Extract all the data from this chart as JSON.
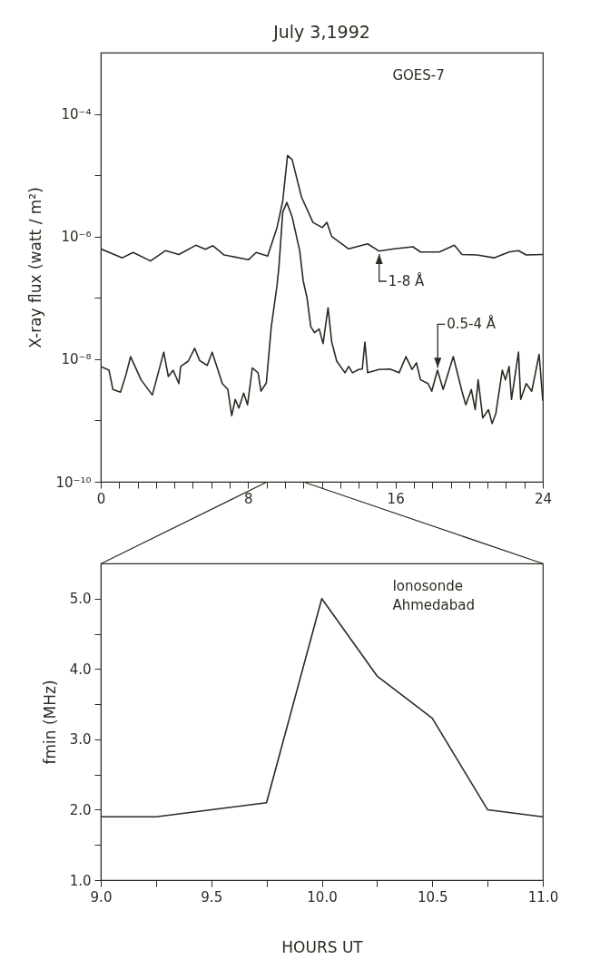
{
  "chart_data": [
    {
      "type": "line",
      "title": "July 3,1992",
      "ylabel": "X-ray flux (watt / m²)",
      "log": true,
      "grid": false,
      "marker": "none",
      "line_style": "solid",
      "annotations": [
        "GOES-7"
      ],
      "xlim": [
        0,
        24
      ],
      "xticks": [
        0,
        {
          "value": 1,
          "label": null
        },
        {
          "value": 2,
          "label": null
        },
        {
          "value": 3,
          "label": null
        },
        {
          "value": 4,
          "label": null
        },
        {
          "value": 5,
          "label": null
        },
        {
          "value": 6,
          "label": null
        },
        {
          "value": 7,
          "label": null
        },
        8,
        {
          "value": 9,
          "label": null
        },
        {
          "value": 10,
          "label": null
        },
        {
          "value": 11,
          "label": null
        },
        {
          "value": 12,
          "label": null
        },
        {
          "value": 13,
          "label": null
        },
        {
          "value": 14,
          "label": null
        },
        {
          "value": 15,
          "label": null
        },
        16,
        {
          "value": 17,
          "label": null
        },
        {
          "value": 18,
          "label": null
        },
        {
          "value": 19,
          "label": null
        },
        {
          "value": 20,
          "label": null
        },
        {
          "value": 21,
          "label": null
        },
        {
          "value": 22,
          "label": null
        },
        {
          "value": 23,
          "label": null
        },
        24
      ],
      "ylim": [
        1e-10,
        0.001
      ],
      "yticks": [
        {
          "value": 1e-10,
          "label": "10⁻¹⁰"
        },
        {
          "value": 1e-09,
          "label": null
        },
        {
          "value": 1e-08,
          "label": "10⁻⁸"
        },
        {
          "value": 1e-07,
          "label": null
        },
        {
          "value": 1e-06,
          "label": "10⁻⁶"
        },
        {
          "value": 1e-05,
          "label": null
        },
        {
          "value": 0.0001,
          "label": "10⁻⁴"
        }
      ],
      "series": [
        {
          "name": "1-8 Å",
          "color": "#2b2b22",
          "x": [
            0,
            1.17,
            1.76,
            2.7,
            3.52,
            4.24,
            5.16,
            5.68,
            6.09,
            6.7,
            8.03,
            8.44,
            9.06,
            9.57,
            9.88,
            10.14,
            10.39,
            10.9,
            11.52,
            12.03,
            12.28,
            12.54,
            13.46,
            14.49,
            15.1,
            15.92,
            16.95,
            17.36,
            18.38,
            19.2,
            19.61,
            20.43,
            21.35,
            22.17,
            22.68,
            23.1,
            24
          ],
          "values": [
            6.3e-07,
            4.5e-07,
            5.5e-07,
            4e-07,
            5.9e-07,
            5.1e-07,
            7.2e-07,
            6.2e-07,
            7.1e-07,
            5e-07,
            4.2e-07,
            5.5e-07,
            4.8e-07,
            1.4e-06,
            3.8e-06,
            2.1e-05,
            1.8e-05,
            4.4e-06,
            1.7e-06,
            1.4e-06,
            1.7e-06,
            1e-06,
            6.3e-07,
            7.6e-07,
            5.8e-07,
            6.3e-07,
            6.8e-07,
            5.6e-07,
            5.6e-07,
            7.2e-07,
            5.1e-07,
            5e-07,
            4.5e-07,
            5.6e-07,
            5.9e-07,
            5e-07,
            5.1e-07
          ]
        },
        {
          "name": "0.5-4 Å",
          "color": "#2b2b22",
          "x": [
            0,
            0.45,
            0.66,
            1.07,
            1.37,
            1.62,
            2.19,
            2.8,
            3.42,
            3.67,
            3.93,
            4.24,
            4.34,
            4.75,
            5.1,
            5.37,
            5.78,
            6.05,
            6.6,
            6.9,
            7.11,
            7.3,
            7.5,
            7.76,
            7.97,
            8.23,
            8.54,
            8.7,
            8.99,
            9.26,
            9.57,
            9.67,
            9.88,
            10.1,
            10.39,
            10.8,
            10.99,
            11.2,
            11.4,
            11.6,
            11.86,
            12.07,
            12.34,
            12.54,
            12.81,
            13.26,
            13.46,
            13.67,
            14.0,
            14.2,
            14.34,
            14.49,
            15.1,
            15.7,
            16.2,
            16.57,
            16.9,
            17.14,
            17.36,
            17.77,
            17.97,
            18.28,
            18.59,
            19.14,
            19.61,
            19.82,
            20.12,
            20.33,
            20.49,
            20.74,
            21.05,
            21.25,
            21.45,
            21.8,
            21.97,
            22.17,
            22.3,
            22.68,
            22.8,
            23.1,
            23.4,
            23.8,
            24
          ],
          "values": [
            7.6e-09,
            6.6e-09,
            3.2e-09,
            2.9e-09,
            5.6e-09,
            1.1e-08,
            4.6e-09,
            2.6e-09,
            1.3e-08,
            5.2e-09,
            6.6e-09,
            4e-09,
            7.6e-09,
            9.3e-09,
            1.5e-08,
            9.5e-09,
            7.9e-09,
            1.3e-08,
            4e-09,
            3.2e-09,
            1.2e-09,
            2.2e-09,
            1.6e-09,
            2.8e-09,
            1.8e-09,
            7.2e-09,
            6e-09,
            3e-09,
            4.1e-09,
            3.4e-08,
            1.6e-07,
            3.1e-07,
            2.5e-06,
            3.6e-06,
            2.1e-06,
            5.9e-07,
            1.9e-07,
            1e-07,
            3.4e-08,
            2.7e-08,
            3.1e-08,
            1.8e-08,
            6.9e-08,
            1.9e-08,
            9.3e-09,
            6e-09,
            7.6e-09,
            6e-09,
            6.8e-09,
            6.9e-09,
            1.9e-08,
            6e-09,
            6.8e-09,
            6.9e-09,
            6e-09,
            1.1e-08,
            6.8e-09,
            8.7e-09,
            4.6e-09,
            4e-09,
            3e-09,
            6.6e-09,
            3.2e-09,
            1.1e-08,
            3e-09,
            1.8e-09,
            3.2e-09,
            1.5e-09,
            4.6e-09,
            1.1e-09,
            1.5e-09,
            8.9e-10,
            1.3e-09,
            6.6e-09,
            4.6e-09,
            7.6e-09,
            2.2e-09,
            1.3e-08,
            2.2e-09,
            4e-09,
            3e-09,
            1.2e-08,
            2.1e-09
          ]
        }
      ]
    },
    {
      "type": "line",
      "xlabel": "HOURS UT",
      "ylabel": "fmin (MHz)",
      "grid": false,
      "marker": "none",
      "line_style": "solid",
      "annotations": [
        "Ionosonde",
        "Ahmedabad"
      ],
      "xlim": [
        9,
        11
      ],
      "xticks": [
        {
          "value": 9,
          "label": "9.0"
        },
        {
          "value": 9.25,
          "label": null
        },
        9.5,
        {
          "value": 9.75,
          "label": null
        },
        {
          "value": 10,
          "label": "10.0"
        },
        {
          "value": 10.25,
          "label": null
        },
        10.5,
        {
          "value": 10.75,
          "label": null
        },
        {
          "value": 11,
          "label": "11.0"
        }
      ],
      "ylim": [
        1,
        5.5
      ],
      "yticks": [
        {
          "value": 1,
          "label": "1.0"
        },
        {
          "value": 1.5,
          "label": null
        },
        {
          "value": 2,
          "label": "2.0"
        },
        {
          "value": 2.5,
          "label": null
        },
        {
          "value": 3,
          "label": "3.0"
        },
        {
          "value": 3.5,
          "label": null
        },
        {
          "value": 4,
          "label": "4.0"
        },
        {
          "value": 4.5,
          "label": null
        },
        {
          "value": 5,
          "label": "5.0"
        }
      ],
      "x": [
        9,
        9.25,
        9.5,
        9.75,
        10,
        10.25,
        10.5,
        10.75,
        11
      ],
      "series": [
        {
          "color": "#2b2b22",
          "values": [
            1.9,
            1.9,
            2.0,
            2.1,
            5.0,
            3.9,
            3.3,
            2.0,
            1.9
          ]
        }
      ]
    }
  ]
}
